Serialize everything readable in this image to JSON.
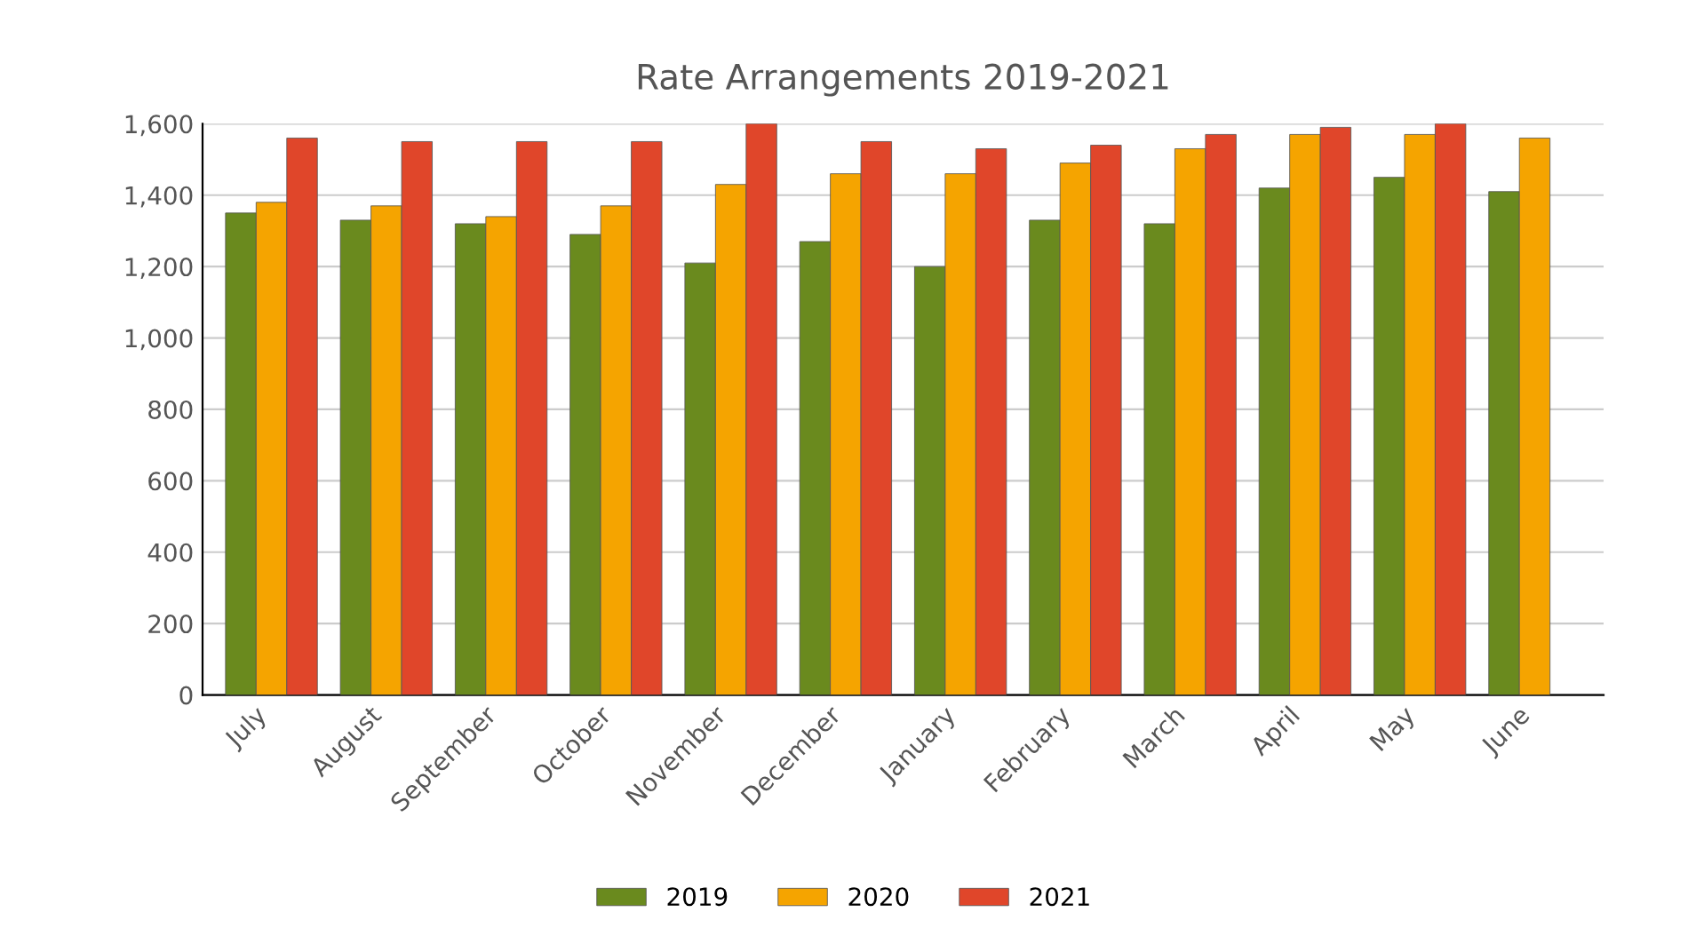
{
  "chart_data": {
    "type": "bar",
    "title": "Rate Arrangements 2019-2021",
    "categories": [
      "July",
      "August",
      "September",
      "October",
      "November",
      "December",
      "January",
      "February",
      "March",
      "April",
      "May",
      "June"
    ],
    "series": [
      {
        "name": "2019",
        "color": "#6a8a1e",
        "values": [
          1350,
          1330,
          1320,
          1290,
          1210,
          1270,
          1200,
          1330,
          1320,
          1420,
          1450,
          1410
        ]
      },
      {
        "name": "2020",
        "color": "#f5a400",
        "values": [
          1380,
          1370,
          1340,
          1370,
          1430,
          1460,
          1460,
          1490,
          1530,
          1570,
          1570,
          1560
        ]
      },
      {
        "name": "2021",
        "color": "#e0462a",
        "values": [
          1560,
          1550,
          1550,
          1550,
          1600,
          1550,
          1530,
          1540,
          1570,
          1590,
          1600,
          null
        ]
      }
    ],
    "ylim": [
      0,
      1600
    ],
    "yticks": [
      {
        "value": 0,
        "label": "0"
      },
      {
        "value": 200,
        "label": "200"
      },
      {
        "value": 400,
        "label": "400"
      },
      {
        "value": 600,
        "label": "600"
      },
      {
        "value": 800,
        "label": "800"
      },
      {
        "value": 1000,
        "label": "1,000"
      },
      {
        "value": 1200,
        "label": "1,200"
      },
      {
        "value": 1400,
        "label": "1,400"
      },
      {
        "value": 1600,
        "label": "1,600"
      }
    ],
    "grid": "y",
    "legend": "bottom"
  }
}
